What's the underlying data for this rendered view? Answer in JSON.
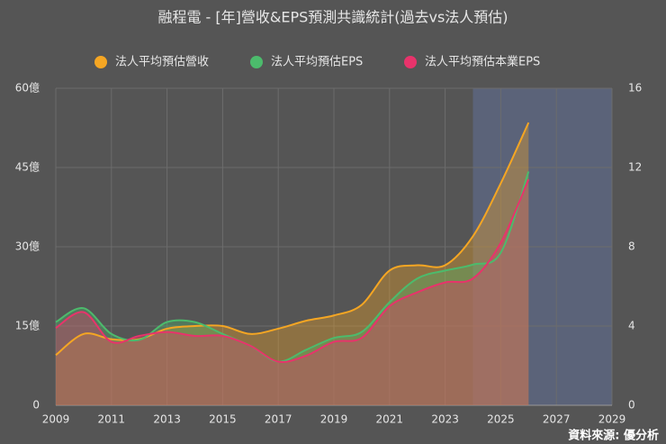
{
  "chart_data": {
    "type": "line",
    "title": "融程電 - [年]營收&EPS預測共識統計(過去vs法人預估)",
    "x": [
      2009,
      2010,
      2011,
      2012,
      2013,
      2014,
      2015,
      2016,
      2017,
      2018,
      2019,
      2020,
      2021,
      2022,
      2023,
      2024,
      2025,
      2026
    ],
    "series": [
      {
        "name": "法人平均預估營收",
        "color": "#f5a623",
        "axis": "y",
        "values": [
          9.5,
          13.5,
          12.5,
          12.5,
          14.5,
          15,
          15,
          13.5,
          14.5,
          16,
          17,
          19,
          25.5,
          26.5,
          26.5,
          32,
          42,
          53.5
        ]
      },
      {
        "name": "法人平均預估EPS",
        "color": "#4cbb6c",
        "axis": "y2",
        "values": [
          4.2,
          4.9,
          3.6,
          3.3,
          4.2,
          4.2,
          3.6,
          3.0,
          2.2,
          2.8,
          3.4,
          3.7,
          5.2,
          6.4,
          6.8,
          7.1,
          7.7,
          11.8
        ]
      },
      {
        "name": "法人平均預估本業EPS",
        "color": "#e8336b",
        "axis": "y2",
        "values": [
          3.9,
          4.7,
          3.2,
          3.5,
          3.7,
          3.5,
          3.5,
          3.0,
          2.2,
          2.5,
          3.2,
          3.4,
          5.0,
          5.7,
          6.2,
          6.4,
          8.2,
          11.4
        ]
      }
    ],
    "xlim": [
      2009,
      2029
    ],
    "xticks": [
      2009,
      2011,
      2013,
      2015,
      2017,
      2019,
      2021,
      2023,
      2025,
      2027,
      2029
    ],
    "ylim": [
      0,
      60
    ],
    "yticks": [
      0,
      {
        "value": 15,
        "label": "15億"
      },
      {
        "value": 30,
        "label": "30億"
      },
      {
        "value": 45,
        "label": "45億"
      },
      {
        "value": 60,
        "label": "60億"
      }
    ],
    "y2lim": [
      0,
      16
    ],
    "y2ticks": [
      0,
      4,
      8,
      12,
      16
    ],
    "forecast_range": [
      2024,
      2029
    ],
    "forecast_color": "#5b6379",
    "grid": true,
    "legend": "top",
    "source": "資料來源: 優分析"
  }
}
